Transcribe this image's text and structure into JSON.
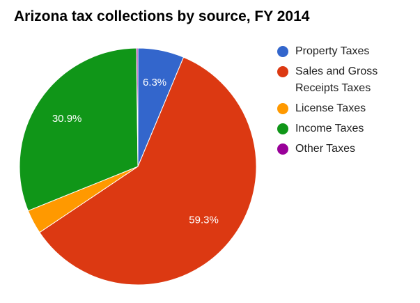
{
  "chart_data": {
    "type": "pie",
    "title": "Arizona tax collections by source, FY 2014",
    "slices": [
      {
        "name": "Property Taxes",
        "value": 6.3,
        "label": "6.3%",
        "color": "#3366cc"
      },
      {
        "name": "Sales and Gross Receipts Taxes",
        "value": 59.3,
        "label": "59.3%",
        "color": "#dc3912"
      },
      {
        "name": "License Taxes",
        "value": 3.3,
        "label": "",
        "color": "#ff9900"
      },
      {
        "name": "Income Taxes",
        "value": 30.9,
        "label": "30.9%",
        "color": "#109618"
      },
      {
        "name": "Other Taxes",
        "value": 0.2,
        "label": "",
        "color": "#990099"
      }
    ],
    "legend": {
      "placement": "right",
      "items": [
        {
          "label": "Property Taxes",
          "color": "#3366cc"
        },
        {
          "label": "Sales and Gross Receipts Taxes",
          "color": "#dc3912"
        },
        {
          "label": "License Taxes",
          "color": "#ff9900"
        },
        {
          "label": "Income Taxes",
          "color": "#109618"
        },
        {
          "label": "Other Taxes",
          "color": "#990099"
        }
      ]
    }
  }
}
